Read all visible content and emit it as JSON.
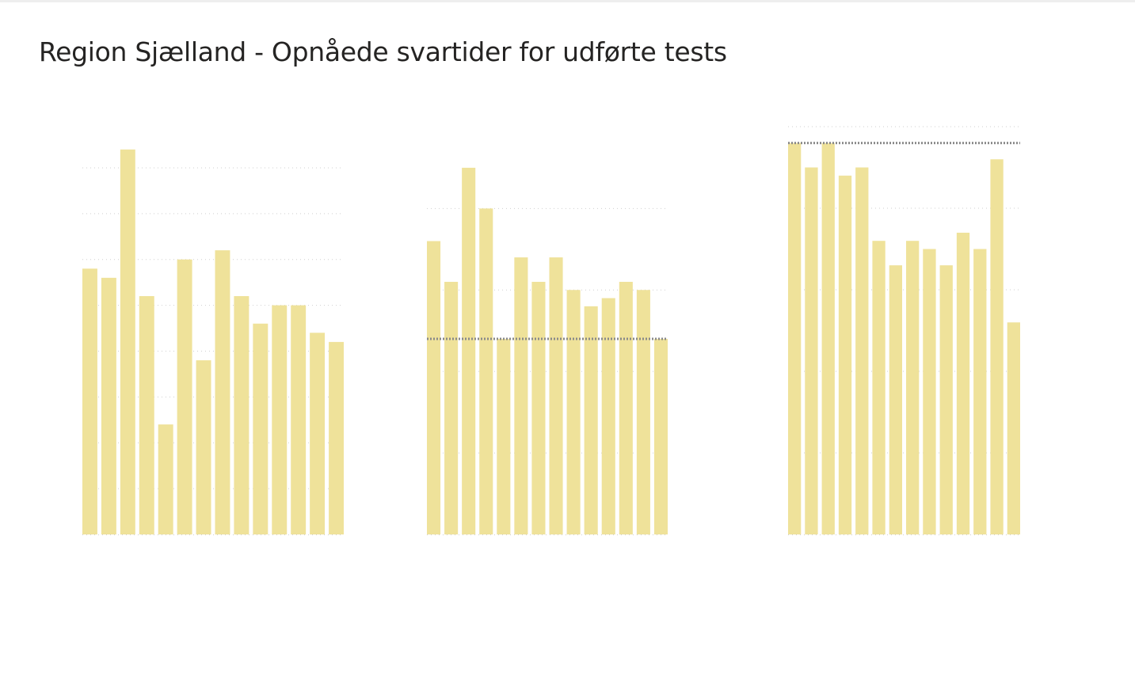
{
  "page": {
    "title": "Region Sjælland - Opnåede svartider for udførte tests"
  },
  "colors": {
    "bar": "#EFE29A",
    "grid": "#cfcfcf",
    "reference_line": "#8a8a8a",
    "title": "#252423"
  },
  "chart_data": [
    {
      "type": "bar",
      "ylim": [
        0,
        85
      ],
      "grid": true,
      "gridlines": [
        10,
        20,
        30,
        40,
        50,
        60,
        70,
        80
      ],
      "values": [
        58,
        56,
        84,
        52,
        24,
        60,
        38,
        62,
        52,
        46,
        50,
        50,
        44,
        42
      ]
    },
    {
      "type": "bar",
      "ylim": [
        0,
        48
      ],
      "grid": true,
      "gridlines": [
        10,
        20,
        30,
        40
      ],
      "reference_line": 24,
      "values": [
        36,
        31,
        45,
        40,
        24,
        34,
        31,
        34,
        30,
        28,
        29,
        31,
        30,
        24
      ]
    },
    {
      "type": "bar",
      "ylim": [
        0,
        100
      ],
      "grid": true,
      "gridlines": [
        20,
        40,
        60,
        80,
        100
      ],
      "reference_line": 96,
      "values": [
        96,
        90,
        96,
        88,
        90,
        72,
        66,
        72,
        70,
        66,
        74,
        70,
        92,
        52
      ]
    }
  ]
}
